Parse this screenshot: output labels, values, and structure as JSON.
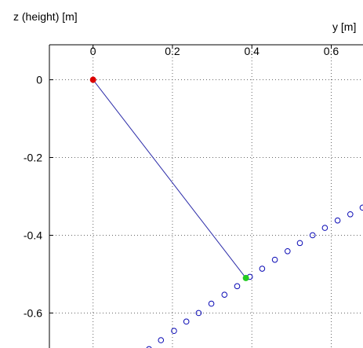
{
  "chart_data": {
    "type": "scatter",
    "xlabel": "y [m]",
    "ylabel": "z (height) [m]",
    "x_ticks": [
      "0",
      "0.2",
      "0.4",
      "0.6"
    ],
    "y_ticks": [
      "0",
      "-0.2",
      "-0.4",
      "-0.6"
    ],
    "x_tick_values": [
      0,
      0.2,
      0.4,
      0.6
    ],
    "y_tick_values": [
      0,
      -0.2,
      -0.4,
      -0.6
    ],
    "xlim": [
      -0.11,
      0.68
    ],
    "ylim": [
      -0.69,
      0.09
    ],
    "x_axis_location": "top",
    "grid": true,
    "grid_style": "dotted",
    "colors": {
      "pivot": "#dd0000",
      "bob": "#22cc22",
      "rod": "#2a2aa8",
      "trajectory": "#0a0ab5",
      "grid": "#666666",
      "axis": "#000000"
    },
    "pivot": {
      "x": 0.0,
      "y": 0.0
    },
    "bob": {
      "x": 0.385,
      "y": -0.51
    },
    "rod": {
      "x": [
        0.0,
        0.385
      ],
      "y": [
        0.0,
        -0.51
      ]
    },
    "trajectory": {
      "x": [
        0.141,
        0.171,
        0.204,
        0.235,
        0.266,
        0.298,
        0.331,
        0.363,
        0.395,
        0.426,
        0.458,
        0.49,
        0.521,
        0.553,
        0.584,
        0.616,
        0.648,
        0.679
      ],
      "y": [
        -0.693,
        -0.67,
        -0.646,
        -0.622,
        -0.6,
        -0.576,
        -0.553,
        -0.531,
        -0.507,
        -0.486,
        -0.463,
        -0.441,
        -0.42,
        -0.4,
        -0.381,
        -0.362,
        -0.346,
        -0.329
      ]
    }
  }
}
